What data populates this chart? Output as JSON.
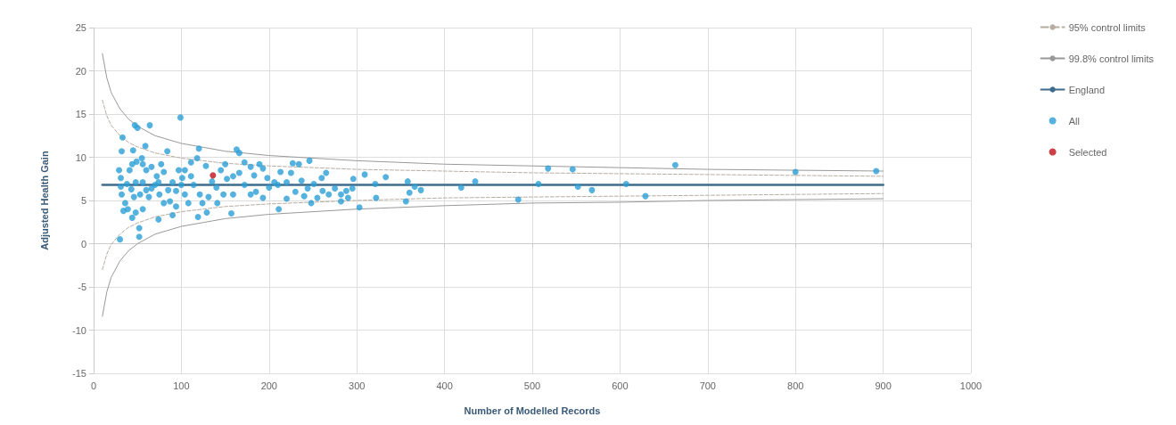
{
  "chart_data": {
    "type": "scatter",
    "xlabel": "Number of Modelled Records",
    "ylabel": "Adjusted Health Gain",
    "xlim": [
      0,
      1000
    ],
    "xticks": [
      0,
      100,
      200,
      300,
      400,
      500,
      600,
      700,
      800,
      900,
      1000
    ],
    "ylim": [
      -15,
      25
    ],
    "yticks": [
      -15,
      -10,
      -5,
      0,
      5,
      10,
      15,
      20,
      25
    ],
    "grid": true,
    "legend": "right",
    "series": [
      {
        "name": "95% control limits",
        "type": "line",
        "color": "#b8aca0",
        "line_style": "dashed",
        "marker": "none",
        "x": [
          10,
          15,
          20,
          30,
          40,
          50,
          70,
          100,
          150,
          200,
          300,
          400,
          500,
          600,
          700,
          800,
          900
        ],
        "values": [
          16.6,
          14.8,
          13.7,
          12.5,
          11.7,
          11.2,
          10.5,
          9.9,
          9.3,
          9.0,
          8.6,
          8.4,
          8.2,
          8.1,
          8.0,
          7.9,
          7.8
        ]
      },
      {
        "type": "line",
        "color": "#b8aca0",
        "line_style": "dashed",
        "marker": "none",
        "x": [
          10,
          15,
          20,
          30,
          40,
          50,
          70,
          100,
          150,
          200,
          300,
          400,
          500,
          600,
          700,
          800,
          900
        ],
        "values": [
          -3.0,
          -1.2,
          -0.1,
          1.1,
          1.9,
          2.4,
          3.1,
          3.7,
          4.3,
          4.6,
          5.0,
          5.3,
          5.4,
          5.5,
          5.6,
          5.7,
          5.8
        ]
      },
      {
        "name": "99.8% control limits",
        "type": "line",
        "color": "#999999",
        "line_style": "solid",
        "marker": "none",
        "x": [
          10,
          15,
          20,
          30,
          40,
          50,
          70,
          100,
          150,
          200,
          300,
          400,
          500,
          600,
          700,
          800,
          900
        ],
        "values": [
          22.0,
          19.2,
          17.5,
          15.6,
          14.4,
          13.6,
          12.5,
          11.6,
          10.7,
          10.2,
          9.6,
          9.2,
          9.0,
          8.8,
          8.6,
          8.5,
          8.4
        ]
      },
      {
        "type": "line",
        "color": "#999999",
        "line_style": "solid",
        "marker": "none",
        "x": [
          10,
          15,
          20,
          30,
          40,
          50,
          70,
          100,
          150,
          200,
          300,
          400,
          500,
          600,
          700,
          800,
          900
        ],
        "values": [
          -8.4,
          -5.6,
          -3.9,
          -2.0,
          -0.8,
          0.0,
          1.1,
          2.0,
          2.9,
          3.4,
          4.0,
          4.4,
          4.7,
          4.8,
          5.0,
          5.1,
          5.2
        ]
      },
      {
        "name": "England",
        "type": "line",
        "color": "#3f6b8c",
        "line_style": "solid",
        "marker": "none",
        "x": [
          10,
          900
        ],
        "values": [
          6.8,
          6.8
        ]
      },
      {
        "name": "All",
        "color": "#2a9fd6",
        "marker": "circle",
        "x": [
          30,
          33,
          32,
          47,
          50,
          64,
          99,
          45,
          84,
          59,
          120,
          52,
          52,
          34,
          48,
          44,
          56,
          74,
          94,
          119,
          129,
          157,
          211,
          246,
          265,
          303,
          163,
          166,
          172,
          179,
          189,
          193,
          227,
          234,
          213,
          206,
          220,
          237,
          244,
          251,
          261,
          268,
          282,
          288,
          295,
          282,
          248,
          220,
          193,
          179,
          172,
          159,
          148,
          141,
          131,
          124,
          121,
          114,
          111,
          104,
          111,
          118,
          128,
          145,
          152,
          159,
          166,
          29,
          31,
          31,
          32,
          36,
          41,
          44,
          49,
          55,
          56,
          60,
          66,
          72,
          77,
          80,
          74,
          66,
          56,
          48,
          43,
          46,
          53,
          63,
          75,
          80,
          87,
          90,
          97,
          101,
          94,
          104,
          108,
          39,
          90,
          309,
          333,
          321,
          358,
          366,
          360,
          373,
          356,
          322,
          296,
          419,
          435,
          484,
          507,
          518,
          546,
          552,
          568,
          663,
          607,
          629,
          800,
          892,
          200,
          185,
          230,
          240,
          210,
          255,
          275,
          140,
          135,
          100,
          85,
          70,
          38,
          60,
          150,
          198,
          225,
          260,
          290,
          183
        ],
        "values": [
          0.5,
          12.3,
          10.7,
          13.7,
          13.4,
          13.7,
          14.6,
          10.8,
          10.7,
          11.3,
          11.0,
          1.8,
          0.8,
          3.8,
          3.6,
          3.0,
          4.0,
          2.8,
          4.3,
          3.1,
          3.6,
          3.5,
          4.0,
          9.6,
          8.2,
          4.2,
          10.9,
          10.5,
          9.4,
          8.9,
          9.2,
          8.7,
          9.3,
          9.2,
          8.3,
          7.1,
          7.1,
          7.3,
          6.4,
          6.9,
          6.1,
          5.7,
          5.7,
          6.1,
          6.4,
          4.9,
          4.7,
          5.2,
          5.3,
          5.7,
          6.8,
          5.7,
          5.7,
          4.7,
          5.4,
          4.7,
          5.7,
          6.8,
          7.8,
          8.5,
          9.4,
          9.9,
          9.0,
          8.5,
          7.5,
          7.8,
          8.2,
          8.5,
          7.6,
          6.6,
          5.7,
          4.7,
          8.5,
          9.2,
          9.5,
          9.9,
          9.2,
          8.5,
          8.9,
          7.8,
          9.2,
          8.3,
          7.1,
          6.4,
          7.1,
          7.1,
          6.3,
          5.4,
          5.7,
          5.4,
          5.7,
          4.7,
          4.9,
          7.1,
          8.5,
          7.6,
          6.1,
          5.7,
          4.7,
          4.0,
          3.3,
          8.0,
          7.7,
          6.9,
          7.2,
          6.6,
          5.9,
          6.2,
          4.9,
          5.3,
          7.5,
          6.5,
          7.2,
          5.1,
          6.9,
          8.7,
          8.6,
          6.6,
          6.2,
          9.1,
          6.9,
          5.5,
          8.3,
          8.4,
          6.5,
          6.0,
          6.0,
          5.5,
          6.8,
          5.3,
          6.4,
          6.5,
          7.2,
          6.8,
          6.2,
          6.8,
          6.9,
          6.2,
          9.2,
          7.6,
          8.2,
          7.6,
          5.3,
          7.9
        ]
      },
      {
        "name": "Selected",
        "color": "#c0101a",
        "marker": "circle",
        "x": [
          136
        ],
        "values": [
          7.9
        ]
      }
    ]
  }
}
